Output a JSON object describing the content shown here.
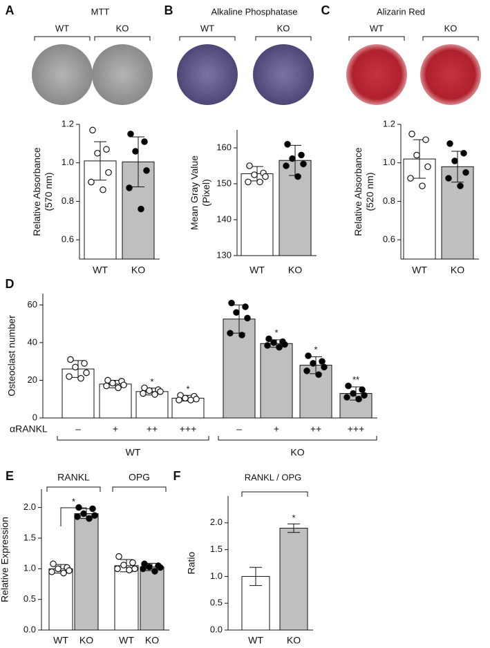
{
  "chart_data": [
    {
      "type": "bar",
      "panel": "A",
      "title": "MTT",
      "image_labels": [
        "WT",
        "KO"
      ],
      "ylabel": [
        "Relative Absorbance",
        "(570 nm)"
      ],
      "categories": [
        "WT",
        "KO"
      ],
      "values": [
        1.01,
        1.005
      ],
      "errors": [
        0.1,
        0.13
      ],
      "colors": [
        "#ffffff",
        "#bfbfbf"
      ],
      "point_colors": [
        "#ffffff",
        "#000000"
      ],
      "points": [
        [
          1.17,
          1.07,
          1.05,
          0.95,
          0.9,
          0.86
        ],
        [
          1.15,
          1.11,
          1.06,
          0.96,
          0.87,
          0.76
        ]
      ],
      "ylim": [
        0.5,
        1.2
      ],
      "yticks": [
        0.6,
        0.8,
        {
          "value": 1,
          "label": "1.0"
        },
        1.2
      ]
    },
    {
      "type": "bar",
      "panel": "B",
      "title": "Alkaline Phosphatase",
      "image_labels": [
        "WT",
        "KO"
      ],
      "ylabel": [
        "Mean Gray Value",
        "(Pixel)"
      ],
      "categories": [
        "WT",
        "KO"
      ],
      "values": [
        152.8,
        156.5
      ],
      "errors": [
        2,
        4.2
      ],
      "colors": [
        "#ffffff",
        "#bfbfbf"
      ],
      "point_colors": [
        "#ffffff",
        "#000000"
      ],
      "points": [
        [
          155,
          153,
          152.5,
          152,
          150.5,
          150.5
        ],
        [
          161,
          158,
          157,
          155.5,
          155,
          152
        ]
      ],
      "ylim": [
        130,
        165
      ],
      "yticks": [
        130,
        140,
        150,
        160
      ]
    },
    {
      "type": "bar",
      "panel": "C",
      "title": "Alizarin Red",
      "image_labels": [
        "WT",
        "KO"
      ],
      "ylabel": [
        "Relative Absorbance",
        "(520 nm)"
      ],
      "categories": [
        "WT",
        "KO"
      ],
      "values": [
        1.02,
        0.98
      ],
      "errors": [
        0.1,
        0.08
      ],
      "colors": [
        "#ffffff",
        "#bfbfbf"
      ],
      "point_colors": [
        "#ffffff",
        "#000000"
      ],
      "points": [
        [
          1.15,
          1.12,
          1.04,
          0.98,
          0.92,
          0.88
        ],
        [
          1.1,
          1.05,
          1.01,
          0.95,
          0.92,
          0.88
        ]
      ],
      "ylim": [
        0.5,
        1.2
      ],
      "yticks": [
        0.6,
        0.8,
        {
          "value": 1,
          "label": "1.0"
        },
        1.2
      ]
    },
    {
      "type": "bar",
      "panel": "D",
      "ylabel": [
        "Osteoclast number"
      ],
      "xlabel": "αRANKL",
      "categories": [
        "–",
        "+",
        "++",
        "+++",
        "–",
        "+",
        "++",
        "+++"
      ],
      "groups": [
        "WT",
        "KO"
      ],
      "values": [
        26,
        18,
        14,
        10.5,
        52.5,
        39.5,
        28,
        13
      ],
      "errors": [
        4.5,
        2,
        1.8,
        1.5,
        7.5,
        2,
        4.5,
        3.5
      ],
      "annotations": [
        null,
        null,
        "*",
        "*",
        null,
        "*",
        "*",
        "**"
      ],
      "colors": [
        "#ffffff",
        "#ffffff",
        "#ffffff",
        "#ffffff",
        "#bfbfbf",
        "#bfbfbf",
        "#bfbfbf",
        "#bfbfbf"
      ],
      "point_colors": [
        "#ffffff",
        "#ffffff",
        "#ffffff",
        "#ffffff",
        "#000000",
        "#000000",
        "#000000",
        "#000000"
      ],
      "points": [
        [
          31,
          29,
          27,
          24,
          22,
          21
        ],
        [
          20,
          19.5,
          18.5,
          17.5,
          17,
          16
        ],
        [
          16,
          15,
          14.5,
          14,
          13,
          12.5
        ],
        [
          12,
          11.5,
          10.5,
          10,
          9.5,
          9.5
        ],
        [
          61,
          59,
          56,
          53,
          45,
          44
        ],
        [
          42,
          40.5,
          40,
          39,
          38.5,
          37.5
        ],
        [
          33,
          30,
          29,
          27,
          25,
          23
        ],
        [
          17,
          15,
          13,
          12,
          11,
          10
        ]
      ],
      "ylim": [
        0,
        66
      ],
      "yticks": [
        0,
        20,
        40,
        60
      ]
    },
    {
      "type": "bar",
      "panel": "E",
      "ylabel": [
        "Relative Expression"
      ],
      "groups": [
        "RANKL",
        "OPG"
      ],
      "comparison_label": "*",
      "categories": [
        "WT",
        "KO",
        "WT",
        "KO"
      ],
      "values": [
        1.0,
        1.9,
        1.05,
        1.03
      ],
      "errors": [
        0.07,
        0.08,
        0.1,
        0.06
      ],
      "colors": [
        "#ffffff",
        "#bfbfbf",
        "#ffffff",
        "#bfbfbf"
      ],
      "point_colors": [
        "#ffffff",
        "#000000",
        "#ffffff",
        "#000000"
      ],
      "points": [
        [
          1.08,
          1.02,
          1.0,
          0.97,
          0.95,
          0.93
        ],
        [
          2.0,
          1.98,
          1.9,
          1.87,
          1.85,
          1.82
        ],
        [
          1.2,
          1.1,
          1.06,
          1.0,
          1.0,
          0.98
        ],
        [
          1.08,
          1.05,
          1.03,
          1.02,
          1.0,
          0.96
        ]
      ],
      "ylim": [
        0,
        2.3
      ],
      "yticks": [
        {
          "value": 0,
          "label": "0.0"
        },
        0.5,
        {
          "value": 1,
          "label": "1.0"
        },
        1.5,
        {
          "value": 2,
          "label": "2.0"
        }
      ]
    },
    {
      "type": "bar",
      "panel": "F",
      "title": "RANKL / OPG",
      "ylabel": [
        "Ratio"
      ],
      "categories": [
        "WT",
        "KO"
      ],
      "values": [
        1.0,
        1.9
      ],
      "errors": [
        0.17,
        0.08
      ],
      "annotations": [
        null,
        "*"
      ],
      "colors": [
        "#ffffff",
        "#bfbfbf"
      ],
      "ylim": [
        0,
        2.5
      ],
      "yticks": [
        {
          "value": 0,
          "label": "0.0"
        },
        0.5,
        {
          "value": 1,
          "label": "1.0"
        },
        1.5,
        {
          "value": 2,
          "label": "2.0"
        }
      ]
    }
  ]
}
